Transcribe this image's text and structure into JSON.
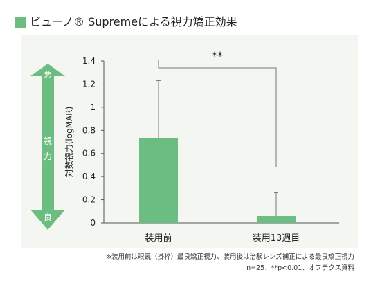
{
  "title": "ビューノ® Supremeによる視力矯正効果",
  "colors": {
    "accent": "#6cbd82",
    "panel_bg": "#f4f7f1",
    "text": "#222222"
  },
  "scale_arrow": {
    "top_label": "悪",
    "middle_label": "視\n力",
    "bottom_label": "良"
  },
  "significance": "**",
  "notes": {
    "line1": "※装用前は眼鏡（掛枠）最良矯正視力、装用後は治験レンズ補正による最良矯正視力",
    "line2": "n=25、**p<0.01、オフテクス資料"
  },
  "chart_data": {
    "type": "bar",
    "title": "",
    "xlabel": "",
    "ylabel": "対数視力(logMAR)",
    "ylim": [
      0,
      1.4
    ],
    "yticks": [
      0,
      0.2,
      0.4,
      0.6,
      0.8,
      1,
      1.2,
      1.4
    ],
    "ytick_labels": [
      "0",
      "0.2",
      "0.4",
      "0.6",
      "0.8",
      "1",
      "1.2",
      "1.4"
    ],
    "categories": [
      "装用前",
      "装用13週目"
    ],
    "values": [
      0.73,
      0.06
    ],
    "error_upper": [
      1.23,
      0.26
    ],
    "grid": false,
    "legend": "none"
  }
}
